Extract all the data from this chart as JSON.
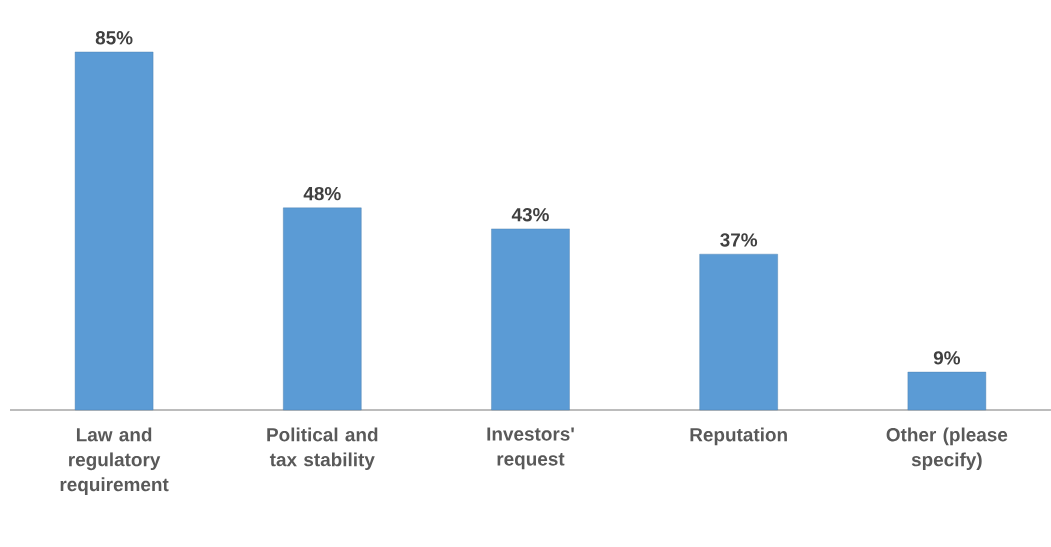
{
  "chart_data": {
    "type": "bar",
    "categories": [
      "Law and regulatory requirement",
      "Political and tax stability",
      "Investors' request",
      "Reputation",
      "Other (please specify)"
    ],
    "values": [
      85,
      48,
      43,
      37,
      9
    ],
    "value_labels": [
      "85%",
      "48%",
      "43%",
      "37%",
      "9%"
    ],
    "color": "#5b9bd5"
  }
}
